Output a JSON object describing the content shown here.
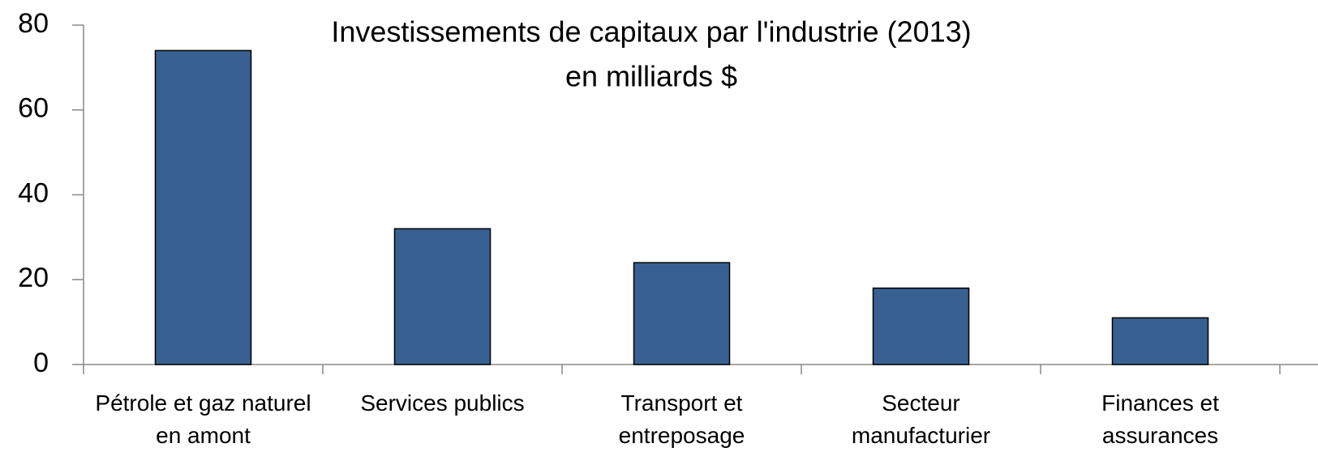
{
  "chart_data": {
    "type": "bar",
    "title": "Investissements de capitaux par l'industrie (2013)",
    "subtitle": "en milliards $",
    "categories": [
      "Pétrole et gaz naturel en amont",
      "Services publics",
      "Transport et entreposage",
      "Secteur manufacturier",
      "Finances et assurances"
    ],
    "values": [
      74,
      32,
      24,
      18,
      11
    ],
    "color": "#386192",
    "ylim": [
      0,
      80
    ],
    "yticks": [
      0,
      20,
      40,
      60,
      80
    ],
    "grid": false
  }
}
